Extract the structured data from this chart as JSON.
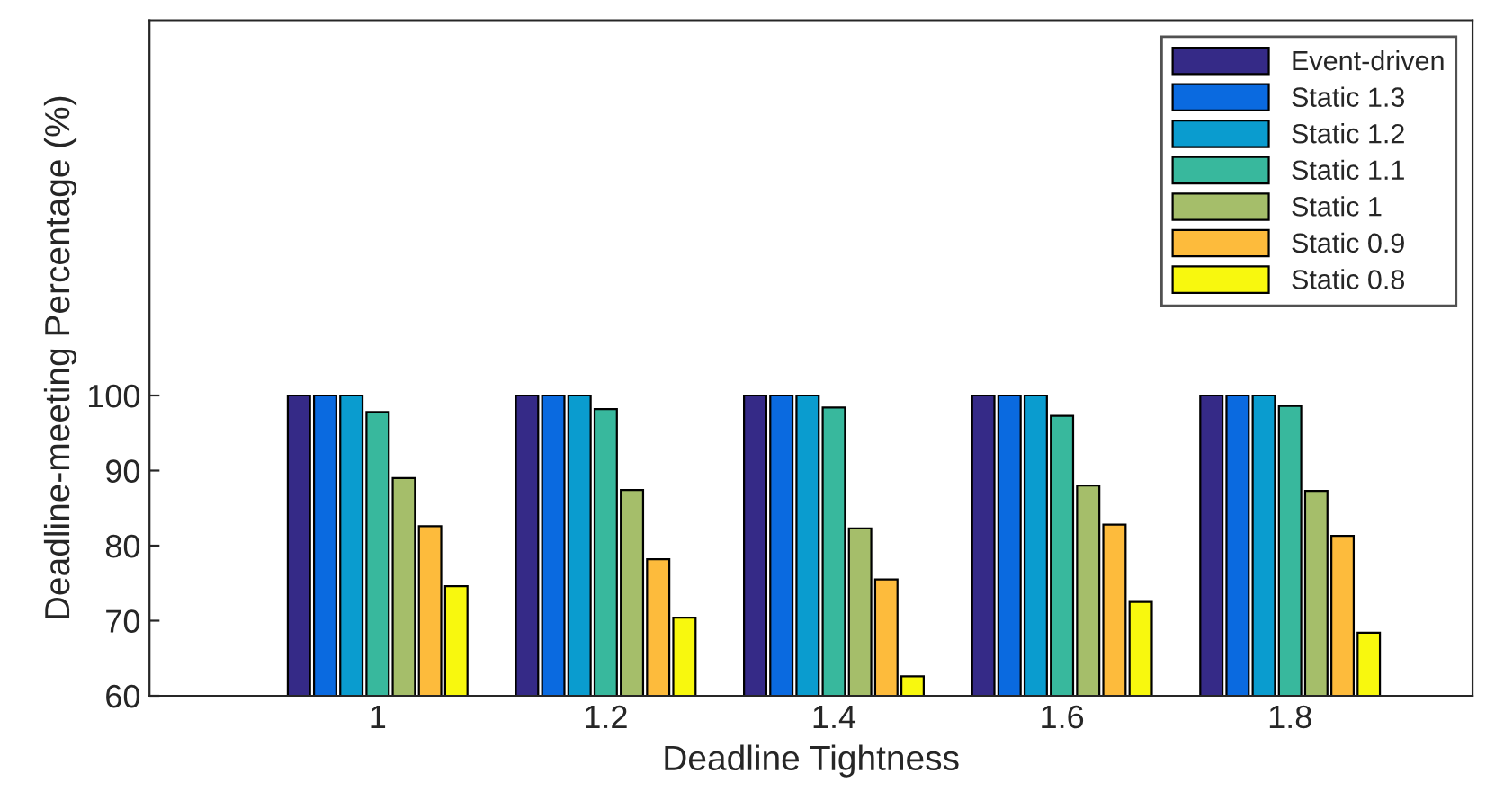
{
  "chart_data": {
    "type": "bar",
    "xlabel": "Deadline Tightness",
    "ylabel": "Deadline-meeting Percentage (%)",
    "categories": [
      "1",
      "1.2",
      "1.4",
      "1.6",
      "1.8"
    ],
    "series": [
      {
        "name": "Event-driven",
        "color": "#352a87",
        "values": [
          100,
          100,
          100,
          100,
          100
        ]
      },
      {
        "name": "Static 1.3",
        "color": "#0a6ae0",
        "values": [
          100,
          100,
          100,
          100,
          100
        ]
      },
      {
        "name": "Static 1.2",
        "color": "#0a9ccf",
        "values": [
          100,
          100,
          100,
          100,
          100
        ]
      },
      {
        "name": "Static 1.1",
        "color": "#38b89d",
        "values": [
          97.8,
          98.2,
          98.4,
          97.3,
          98.6
        ]
      },
      {
        "name": "Static 1",
        "color": "#a5be6a",
        "values": [
          89.0,
          87.4,
          82.3,
          88.0,
          87.3
        ]
      },
      {
        "name": "Static 0.9",
        "color": "#fdbb3c",
        "values": [
          82.6,
          78.2,
          75.5,
          82.8,
          81.3
        ]
      },
      {
        "name": "Static 0.8",
        "color": "#f8f80e",
        "values": [
          74.6,
          70.4,
          62.6,
          72.5,
          68.4
        ]
      }
    ],
    "ylim": [
      60,
      150
    ],
    "yticks": [
      60,
      70,
      80,
      90,
      100
    ],
    "grid": false,
    "legend": "top right"
  }
}
